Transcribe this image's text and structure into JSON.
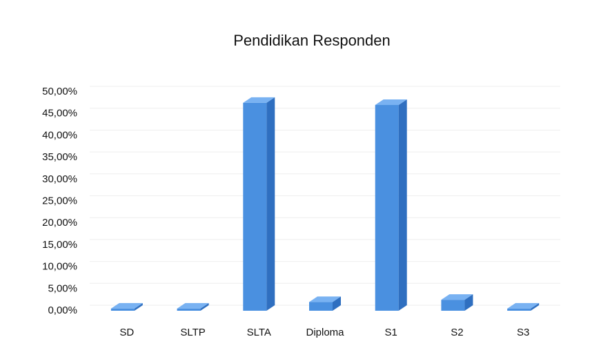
{
  "chart_data": {
    "type": "bar3d",
    "title": "Pendidikan Responden",
    "categories": [
      "SD",
      "SLTP",
      "SLTA",
      "Diploma",
      "S1",
      "S2",
      "S3"
    ],
    "values": [
      0.5,
      0.5,
      47.5,
      2,
      47,
      2.5,
      0.5
    ],
    "color": "#4a90e0",
    "ylim": [
      0,
      50
    ],
    "yticks": [
      {
        "value": 0,
        "label": "0,00%"
      },
      {
        "value": 5,
        "label": "5,00%"
      },
      {
        "value": 10,
        "label": "10,00%"
      },
      {
        "value": 15,
        "label": "15,00%"
      },
      {
        "value": 20,
        "label": "20,00%"
      },
      {
        "value": 25,
        "label": "25,00%"
      },
      {
        "value": 30,
        "label": "30,00%"
      },
      {
        "value": 35,
        "label": "35,00%"
      },
      {
        "value": 40,
        "label": "40,00%"
      },
      {
        "value": 45,
        "label": "45,00%"
      },
      {
        "value": 50,
        "label": "50,00%"
      }
    ],
    "grid": true
  }
}
